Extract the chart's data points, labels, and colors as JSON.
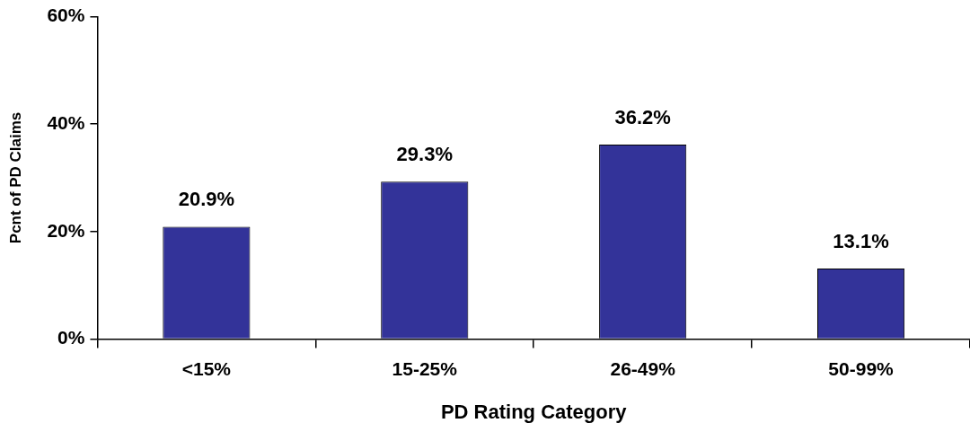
{
  "chart_data": {
    "type": "bar",
    "xlabel": "PD Rating Category",
    "ylabel": "Pcnt of PD Claims",
    "categories": [
      "<15%",
      "15-25%",
      "26-49%",
      "50-99%"
    ],
    "values": [
      20.9,
      29.3,
      36.2,
      13.1
    ],
    "value_labels": [
      "20.9%",
      "29.3%",
      "36.2%",
      "13.1%"
    ],
    "color": "#333399",
    "ylim": [
      0,
      60
    ],
    "yticks": [
      {
        "value": 0,
        "label": "0%"
      },
      {
        "value": 20,
        "label": "20%"
      },
      {
        "value": 40,
        "label": "40%"
      },
      {
        "value": 60,
        "label": "60%"
      }
    ],
    "grid": false,
    "legend": false
  }
}
